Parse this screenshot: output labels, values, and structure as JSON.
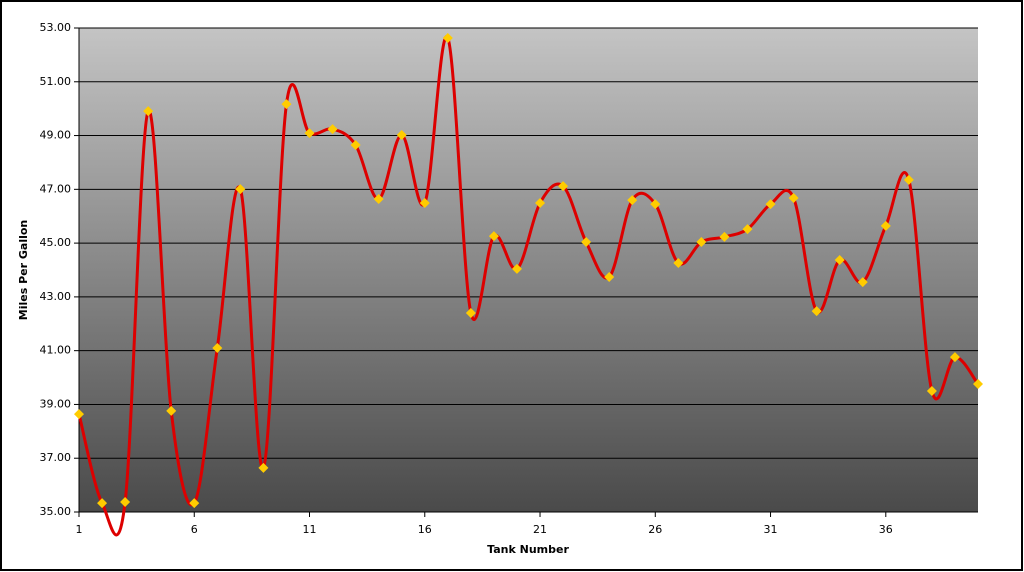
{
  "chart_data": {
    "type": "line",
    "x_label": "Tank Number",
    "y_label": "Miles Per Gallon",
    "x": [
      1,
      2,
      3,
      4,
      5,
      6,
      7,
      8,
      9,
      10,
      11,
      12,
      13,
      14,
      15,
      16,
      17,
      18,
      19,
      20,
      21,
      22,
      23,
      24,
      25,
      26,
      27,
      28,
      29,
      30,
      31,
      32,
      33,
      34,
      35,
      36,
      37,
      38,
      39,
      40
    ],
    "values": [
      38.64,
      35.33,
      35.37,
      49.91,
      38.76,
      35.33,
      41.1,
      47.01,
      36.64,
      50.17,
      49.09,
      49.24,
      48.65,
      46.64,
      49.02,
      46.49,
      52.63,
      42.4,
      45.26,
      44.04,
      46.49,
      47.12,
      45.04,
      43.74,
      46.6,
      46.45,
      44.26,
      45.04,
      45.23,
      45.52,
      46.45,
      46.68,
      42.47,
      44.37,
      43.55,
      45.64,
      47.35,
      39.5,
      40.76,
      39.76
    ],
    "color": "#dd0000",
    "marker_color": "#ffcc00",
    "xlim": [
      1,
      40
    ],
    "xticks": [
      1,
      6,
      11,
      16,
      21,
      26,
      31,
      36
    ],
    "ylim": [
      35,
      53
    ],
    "yticks": [
      {
        "value": 35,
        "label": "35.00"
      },
      {
        "value": 37,
        "label": "37.00"
      },
      {
        "value": 39,
        "label": "39.00"
      },
      {
        "value": 41,
        "label": "41.00"
      },
      {
        "value": 43,
        "label": "43.00"
      },
      {
        "value": 45,
        "label": "45.00"
      },
      {
        "value": 47,
        "label": "47.00"
      },
      {
        "value": 49,
        "label": "49.00"
      },
      {
        "value": 51,
        "label": "51.00"
      },
      {
        "value": 53,
        "label": "53.00"
      }
    ],
    "grid": true
  }
}
